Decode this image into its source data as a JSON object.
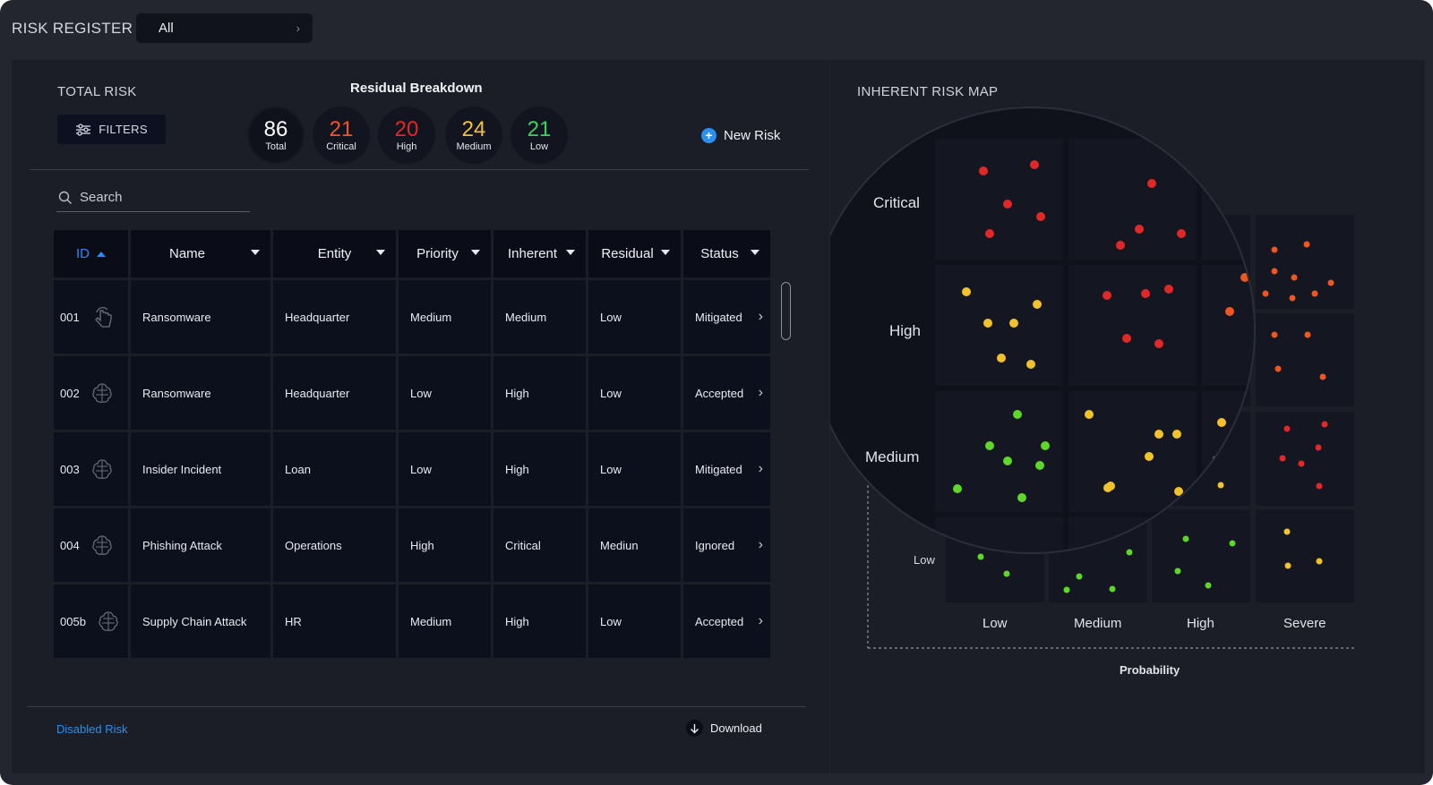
{
  "header": {
    "title": "RISK REGISTER",
    "filter_value": "All"
  },
  "total_risk": {
    "label": "TOTAL RISK",
    "filters_label": "FILTERS",
    "breakdown_title": "Residual Breakdown",
    "counts": [
      {
        "value": "86",
        "label": "Total",
        "color": "#ffffff"
      },
      {
        "value": "21",
        "label": "Critical",
        "color": "#f0562a"
      },
      {
        "value": "20",
        "label": "High",
        "color": "#e0282a"
      },
      {
        "value": "24",
        "label": "Medium",
        "color": "#f5c03a"
      },
      {
        "value": "21",
        "label": "Low",
        "color": "#3fd15f"
      }
    ],
    "new_risk_label": "New Risk"
  },
  "search": {
    "placeholder": "Search"
  },
  "table": {
    "columns": [
      "ID",
      "Name",
      "Entity",
      "Priority",
      "Inherent",
      "Residual",
      "Status"
    ],
    "rows": [
      {
        "id": "001",
        "name": "Ransomware",
        "entity": "Headquarter",
        "priority": "Medium",
        "inherent": "Medium",
        "residual": "Low",
        "status": "Mitigated",
        "icon": "hand-cursor-icon"
      },
      {
        "id": "002",
        "name": "Ransomware",
        "entity": "Headquarter",
        "priority": "Low",
        "inherent": "High",
        "residual": "Low",
        "status": "Accepted",
        "icon": "brain-circuit-icon"
      },
      {
        "id": "003",
        "name": "Insider Incident",
        "entity": "Loan",
        "priority": "Low",
        "inherent": "High",
        "residual": "Low",
        "status": "Mitigated",
        "icon": "brain-circuit-icon"
      },
      {
        "id": "004",
        "name": "Phishing Attack",
        "entity": "Operations",
        "priority": "High",
        "inherent": "Critical",
        "residual": "Mediun",
        "status": "Ignored",
        "icon": "brain-circuit-icon"
      },
      {
        "id": "005b",
        "name": "Supply Chain Attack",
        "entity": "HR",
        "priority": "Medium",
        "inherent": "High",
        "residual": "Low",
        "status": "Accepted",
        "icon": "brain-circuit-icon"
      }
    ]
  },
  "footer": {
    "disabled_link": "Disabled Risk",
    "download_label": "Download"
  },
  "risk_map": {
    "title": "INHERENT RISK MAP",
    "y_labels": [
      "Critical",
      "High",
      "Medium",
      "Low"
    ],
    "x_labels": [
      "Low",
      "Medium",
      "High",
      "Severe"
    ],
    "x_axis_title": "Probability",
    "colors": {
      "red": "#e02828",
      "orange": "#f0561e",
      "yellow": "#f2c22c",
      "green": "#5ed62a"
    }
  }
}
